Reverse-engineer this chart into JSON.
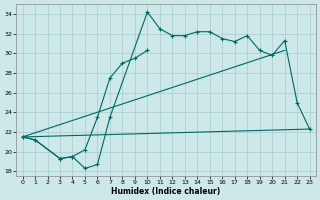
{
  "bg_color": "#cce8e8",
  "grid_color": "#aacccc",
  "line_color": "#006666",
  "xlabel": "Humidex (Indice chaleur)",
  "xlim": [
    -0.5,
    23.5
  ],
  "ylim": [
    17.5,
    35.0
  ],
  "xticks": [
    0,
    1,
    2,
    3,
    4,
    5,
    6,
    7,
    8,
    9,
    10,
    11,
    12,
    13,
    14,
    15,
    16,
    17,
    18,
    19,
    20,
    21,
    22,
    23
  ],
  "yticks": [
    18,
    20,
    22,
    24,
    26,
    28,
    30,
    32,
    34
  ],
  "series": [
    {
      "x": [
        0,
        1,
        3,
        4,
        5,
        6,
        7,
        8,
        9,
        10
      ],
      "y": [
        21.5,
        21.2,
        19.3,
        19.5,
        20.2,
        23.5,
        27.5,
        29.0,
        29.5,
        30.3
      ],
      "markers": true
    },
    {
      "x": [
        0,
        1,
        3,
        4,
        5,
        6,
        7,
        10,
        11,
        12,
        13,
        14,
        15,
        16,
        17,
        18,
        19,
        20,
        21,
        22,
        23
      ],
      "y": [
        21.5,
        21.2,
        19.3,
        19.5,
        18.3,
        18.7,
        23.5,
        34.2,
        32.5,
        31.8,
        31.8,
        32.2,
        32.2,
        31.5,
        31.2,
        31.8,
        30.3,
        29.8,
        31.3,
        25.0,
        22.3
      ],
      "markers": true
    },
    {
      "x": [
        0,
        23
      ],
      "y": [
        21.5,
        22.3
      ],
      "markers": false
    },
    {
      "x": [
        0,
        21
      ],
      "y": [
        21.5,
        30.3
      ],
      "markers": false
    }
  ]
}
